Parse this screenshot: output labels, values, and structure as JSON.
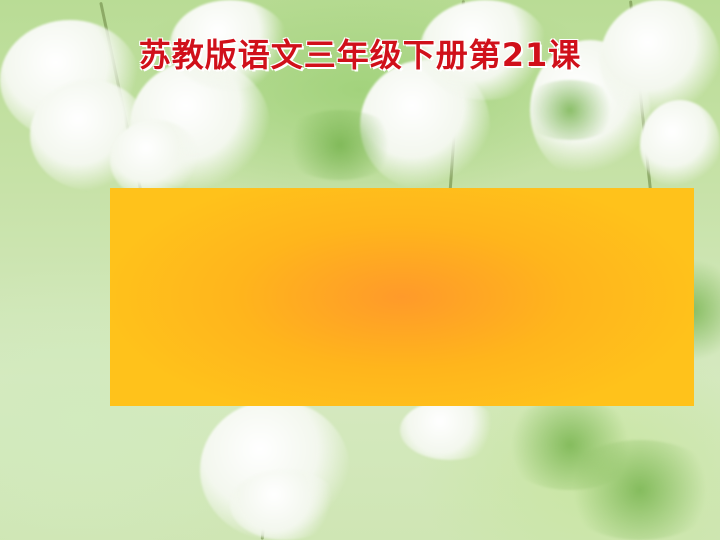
{
  "slide": {
    "title": "苏教版语文三年级下册第21课"
  }
}
